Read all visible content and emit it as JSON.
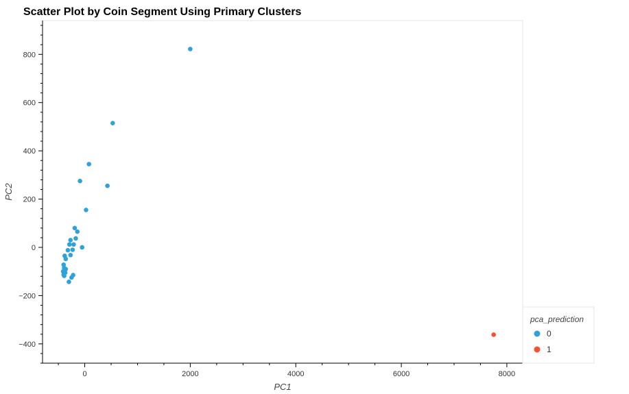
{
  "chart_data": {
    "type": "scatter",
    "title": "Scatter Plot by Coin Segment Using Primary Clusters",
    "xlabel": "PC1",
    "ylabel": "PC2",
    "xlim": [
      -800,
      8300
    ],
    "ylim": [
      -480,
      940
    ],
    "grid": false,
    "x_ticks": [
      {
        "value": 0,
        "label": "0"
      },
      {
        "value": 2000,
        "label": "2000"
      },
      {
        "value": 4000,
        "label": "4000"
      },
      {
        "value": 6000,
        "label": "6000"
      },
      {
        "value": 8000,
        "label": "8000"
      }
    ],
    "y_ticks": [
      {
        "value": -400,
        "label": "−400"
      },
      {
        "value": -200,
        "label": "−200"
      },
      {
        "value": 0,
        "label": "0"
      },
      {
        "value": 200,
        "label": "200"
      },
      {
        "value": 400,
        "label": "400"
      },
      {
        "value": 600,
        "label": "600"
      },
      {
        "value": 800,
        "label": "800"
      }
    ],
    "legend": {
      "title": "pca_prediction",
      "position": "bottom-right-outside",
      "items": [
        {
          "label": "0",
          "color": "#30a2da"
        },
        {
          "label": "1",
          "color": "#fc4f30"
        }
      ]
    },
    "series": [
      {
        "name": "0",
        "color": "#30a2da",
        "points": [
          {
            "x": 2000,
            "y": 822
          },
          {
            "x": 530,
            "y": 515
          },
          {
            "x": 80,
            "y": 345
          },
          {
            "x": -90,
            "y": 275
          },
          {
            "x": 430,
            "y": 255
          },
          {
            "x": 25,
            "y": 155
          },
          {
            "x": -190,
            "y": 80
          },
          {
            "x": -140,
            "y": 65
          },
          {
            "x": -170,
            "y": 37
          },
          {
            "x": -270,
            "y": 30
          },
          {
            "x": -290,
            "y": 12
          },
          {
            "x": -210,
            "y": 12
          },
          {
            "x": -50,
            "y": 0
          },
          {
            "x": -320,
            "y": -12
          },
          {
            "x": -230,
            "y": -10
          },
          {
            "x": -270,
            "y": -32
          },
          {
            "x": -380,
            "y": -35
          },
          {
            "x": -360,
            "y": -48
          },
          {
            "x": -400,
            "y": -72
          },
          {
            "x": -390,
            "y": -85
          },
          {
            "x": -360,
            "y": -90
          },
          {
            "x": -410,
            "y": -100
          },
          {
            "x": -370,
            "y": -105
          },
          {
            "x": -400,
            "y": -113
          },
          {
            "x": -390,
            "y": -118
          },
          {
            "x": -220,
            "y": -115
          },
          {
            "x": -250,
            "y": -125
          },
          {
            "x": -300,
            "y": -143
          }
        ]
      },
      {
        "name": "1",
        "color": "#fc4f30",
        "points": [
          {
            "x": 7750,
            "y": -362
          }
        ]
      }
    ]
  }
}
